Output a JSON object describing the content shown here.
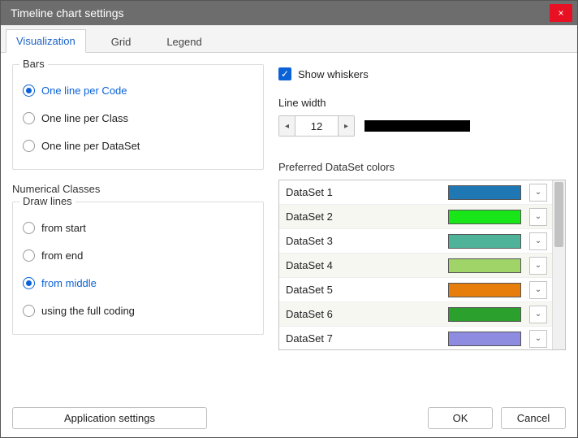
{
  "window": {
    "title": "Timeline chart settings",
    "close_icon": "×"
  },
  "tabs": [
    {
      "label": "Visualization",
      "active": true
    },
    {
      "label": "Grid",
      "active": false
    },
    {
      "label": "Legend",
      "active": false
    }
  ],
  "bars_group": {
    "title": "Bars",
    "options": [
      {
        "label": "One line per Code",
        "selected": true
      },
      {
        "label": "One line per Class",
        "selected": false
      },
      {
        "label": "One line per DataSet",
        "selected": false
      }
    ]
  },
  "numerical_classes": {
    "heading": "Numerical Classes",
    "draw_lines_title": "Draw lines",
    "options": [
      {
        "label": "from start",
        "selected": false
      },
      {
        "label": "from end",
        "selected": false
      },
      {
        "label": "from middle",
        "selected": true
      },
      {
        "label": "using the full coding",
        "selected": false
      }
    ]
  },
  "whiskers": {
    "checkbox_label": "Show whiskers",
    "checked": true,
    "line_width_label": "Line width",
    "line_width_value": "12",
    "preview_color": "#000000"
  },
  "datasets": {
    "heading": "Preferred DataSet colors",
    "rows": [
      {
        "name": "DataSet 1",
        "color": "#1f77b4",
        "alt": false
      },
      {
        "name": "DataSet 2",
        "color": "#19e619",
        "alt": true
      },
      {
        "name": "DataSet 3",
        "color": "#4fb39a",
        "alt": false
      },
      {
        "name": "DataSet 4",
        "color": "#a0d468",
        "alt": true
      },
      {
        "name": "DataSet 5",
        "color": "#e77e0c",
        "alt": false
      },
      {
        "name": "DataSet 6",
        "color": "#2ca02c",
        "alt": true
      },
      {
        "name": "DataSet 7",
        "color": "#8e8ce0",
        "alt": false
      }
    ]
  },
  "footer": {
    "app_settings": "Application settings",
    "ok": "OK",
    "cancel": "Cancel"
  },
  "glyphs": {
    "check": "✓",
    "left": "◂",
    "right": "▸",
    "down": "⌄"
  }
}
